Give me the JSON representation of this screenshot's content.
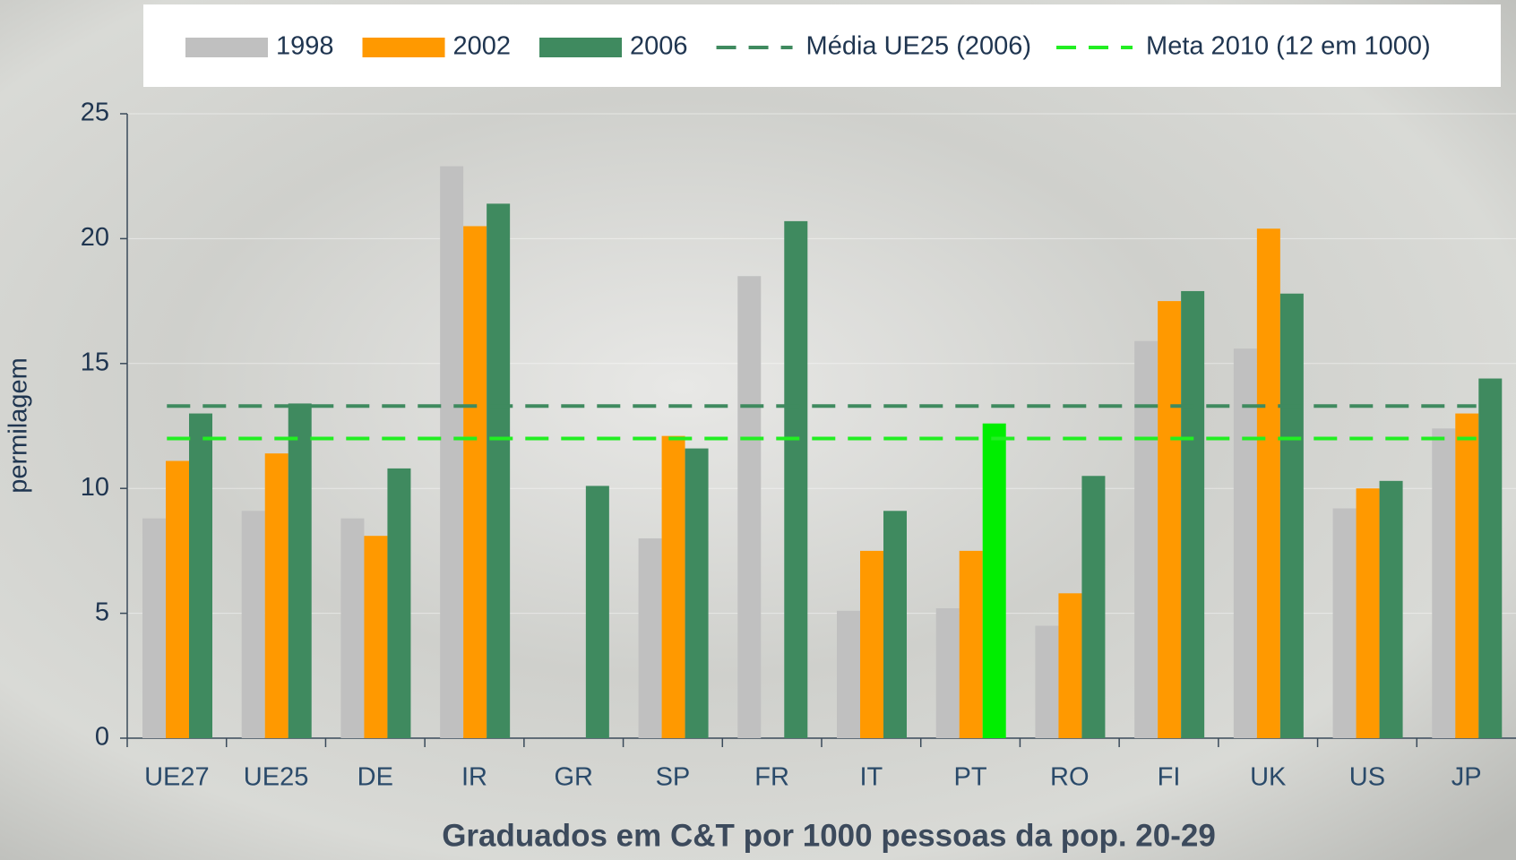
{
  "chart_data": {
    "type": "bar",
    "x_label": "Graduados em C&T por 1000 pessoas da pop. 20-29",
    "y_label": "permilagem",
    "categories": [
      "UE27",
      "UE25",
      "DE",
      "IR",
      "GR",
      "SP",
      "FR",
      "IT",
      "PT",
      "RO",
      "FI",
      "UK",
      "US",
      "JP"
    ],
    "series": [
      {
        "name": "1998",
        "color": "#c0c0c0",
        "values": [
          8.8,
          9.1,
          8.8,
          22.9,
          null,
          8.0,
          18.5,
          5.1,
          5.2,
          4.5,
          15.9,
          15.6,
          9.2,
          12.4
        ]
      },
      {
        "name": "2002",
        "color": "#ff9900",
        "values": [
          11.1,
          11.4,
          8.1,
          20.5,
          null,
          12.1,
          null,
          7.5,
          7.5,
          5.8,
          17.5,
          20.4,
          10.0,
          13.0
        ]
      },
      {
        "name": "2006",
        "color": "#3f8a5f",
        "values": [
          13.0,
          13.4,
          10.8,
          21.4,
          10.1,
          11.6,
          20.7,
          9.1,
          12.6,
          10.5,
          17.9,
          17.8,
          10.3,
          14.4
        ],
        "colors": [
          "#3f8a5f",
          "#3f8a5f",
          "#3f8a5f",
          "#3f8a5f",
          "#3f8a5f",
          "#3f8a5f",
          "#3f8a5f",
          "#3f8a5f",
          "#00ee00",
          "#3f8a5f",
          "#3f8a5f",
          "#3f8a5f",
          "#3f8a5f",
          "#3f8a5f"
        ]
      }
    ],
    "reference_lines": [
      {
        "name": "Média UE25 (2006)",
        "value": 13.3,
        "color": "#3f8a5f"
      },
      {
        "name": "Meta 2010 (12 em 1000)",
        "value": 12.0,
        "color": "#22ee22"
      }
    ],
    "ylim": [
      0,
      25
    ],
    "yticks": [
      0,
      5,
      10,
      15,
      20,
      25
    ],
    "grid": true,
    "legend": "top"
  }
}
